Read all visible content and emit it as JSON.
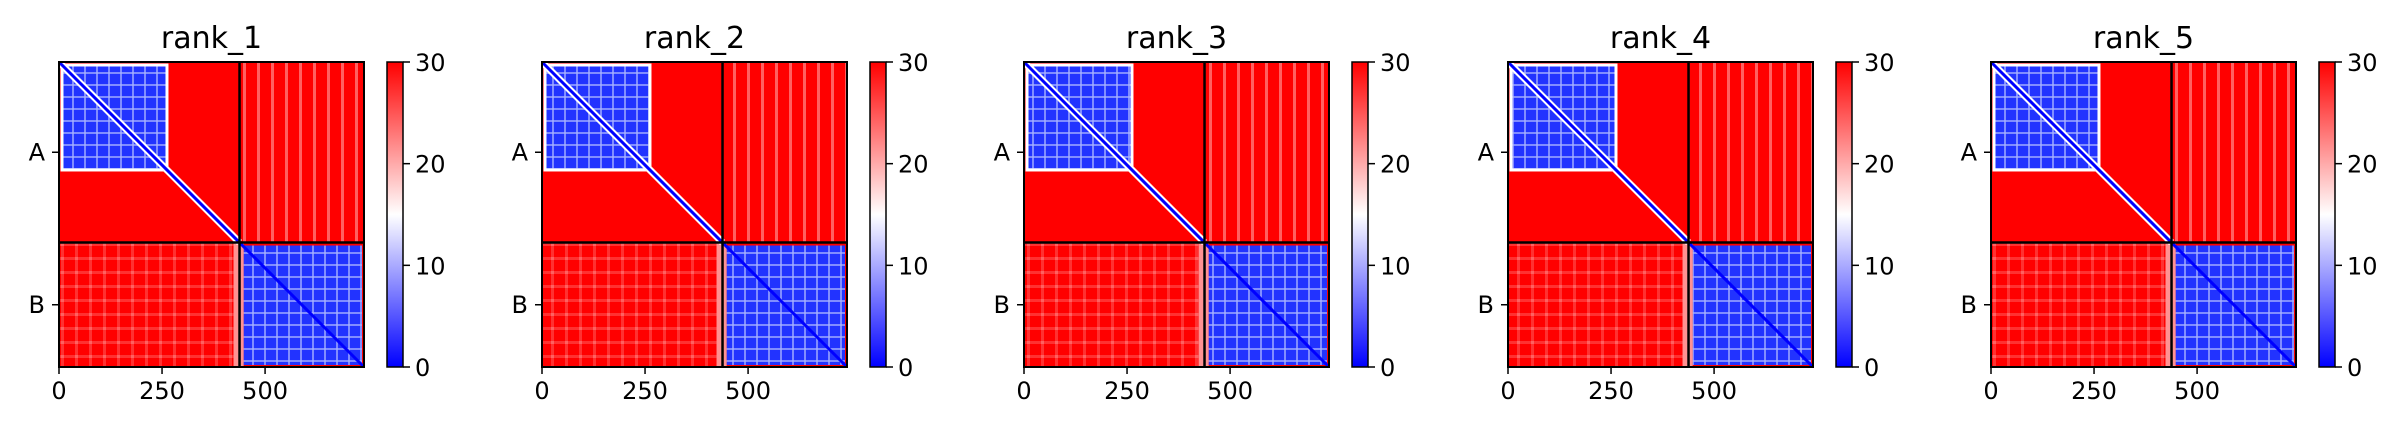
{
  "chart_data": [
    {
      "type": "heatmap",
      "title": "rank_1",
      "n_residues": 740,
      "chain_boundary": 438,
      "x_ticks": [
        0,
        250,
        500
      ],
      "y_tick_labels": [
        {
          "label": "A",
          "at": 219
        },
        {
          "label": "B",
          "at": 589
        }
      ],
      "colorbar": {
        "min": 0,
        "max": 30,
        "ticks": [
          0,
          10,
          20,
          30
        ],
        "colormap": [
          "#0000ff",
          "#ffffff",
          "#ff0000"
        ]
      },
      "low_error_block_A_end": 262,
      "low_error_block_B_start": 448
    },
    {
      "type": "heatmap",
      "title": "rank_2",
      "n_residues": 740,
      "chain_boundary": 438,
      "x_ticks": [
        0,
        250,
        500
      ],
      "y_tick_labels": [
        {
          "label": "A",
          "at": 219
        },
        {
          "label": "B",
          "at": 589
        }
      ],
      "colorbar": {
        "min": 0,
        "max": 30,
        "ticks": [
          0,
          10,
          20,
          30
        ],
        "colormap": [
          "#0000ff",
          "#ffffff",
          "#ff0000"
        ]
      },
      "low_error_block_A_end": 262,
      "low_error_block_B_start": 448
    },
    {
      "type": "heatmap",
      "title": "rank_3",
      "n_residues": 740,
      "chain_boundary": 438,
      "x_ticks": [
        0,
        250,
        500
      ],
      "y_tick_labels": [
        {
          "label": "A",
          "at": 219
        },
        {
          "label": "B",
          "at": 589
        }
      ],
      "colorbar": {
        "min": 0,
        "max": 30,
        "ticks": [
          0,
          10,
          20,
          30
        ],
        "colormap": [
          "#0000ff",
          "#ffffff",
          "#ff0000"
        ]
      },
      "low_error_block_A_end": 262,
      "low_error_block_B_start": 448
    },
    {
      "type": "heatmap",
      "title": "rank_4",
      "n_residues": 740,
      "chain_boundary": 438,
      "x_ticks": [
        0,
        250,
        500
      ],
      "y_tick_labels": [
        {
          "label": "A",
          "at": 219
        },
        {
          "label": "B",
          "at": 589
        }
      ],
      "colorbar": {
        "min": 0,
        "max": 30,
        "ticks": [
          0,
          10,
          20,
          30
        ],
        "colormap": [
          "#0000ff",
          "#ffffff",
          "#ff0000"
        ]
      },
      "low_error_block_A_end": 262,
      "low_error_block_B_start": 448
    },
    {
      "type": "heatmap",
      "title": "rank_5",
      "n_residues": 740,
      "chain_boundary": 438,
      "x_ticks": [
        0,
        250,
        500
      ],
      "y_tick_labels": [
        {
          "label": "A",
          "at": 219
        },
        {
          "label": "B",
          "at": 589
        }
      ],
      "colorbar": {
        "min": 0,
        "max": 30,
        "ticks": [
          0,
          10,
          20,
          30
        ],
        "colormap": [
          "#0000ff",
          "#ffffff",
          "#ff0000"
        ]
      },
      "low_error_block_A_end": 262,
      "low_error_block_B_start": 448
    }
  ]
}
